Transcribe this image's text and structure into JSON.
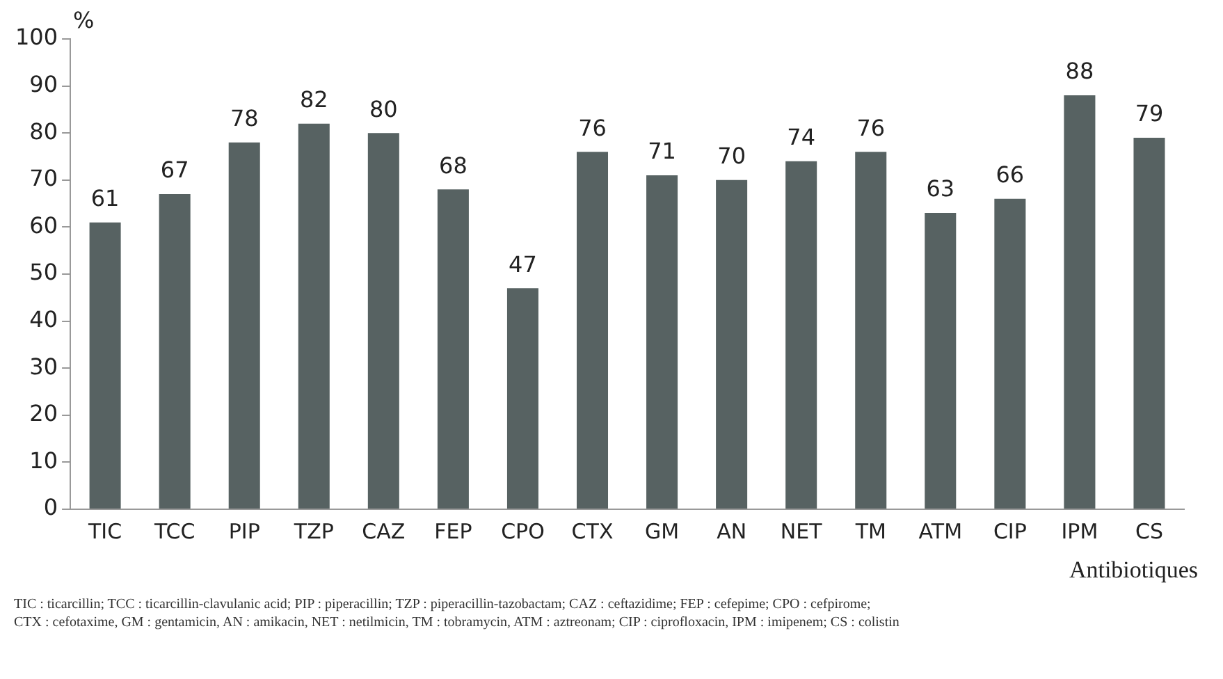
{
  "chart_data": {
    "type": "bar",
    "ylabel": "%",
    "xlabel": "Antibiotiques",
    "categories": [
      "TIC",
      "TCC",
      "PIP",
      "TZP",
      "CAZ",
      "FEP",
      "CPO",
      "CTX",
      "GM",
      "AN",
      "NET",
      "TM",
      "ATM",
      "CIP",
      "IPM",
      "CS"
    ],
    "values": [
      61,
      67,
      78,
      82,
      80,
      68,
      47,
      76,
      71,
      70,
      74,
      76,
      63,
      66,
      88,
      79
    ],
    "color": "#576262",
    "ylim": [
      0,
      100
    ],
    "yticks": [
      0,
      10,
      20,
      30,
      40,
      50,
      60,
      70,
      80,
      90,
      100
    ],
    "grid": false,
    "legend": false,
    "data_labels": true,
    "annotations": [
      "TIC : ticarcillin; TCC : ticarcillin-clavulanic acid; PIP : piperacillin; TZP : piperacillin-tazobactam; CAZ : ceftazidime; FEP : cefepime; CPO : cefpirome;",
      "CTX : cefotaxime, GM : gentamicin, AN : amikacin, NET : netilmicin, TM : tobramycin, ATM : aztreonam; CIP : ciprofloxacin, IPM : imipenem; CS : colistin"
    ]
  }
}
